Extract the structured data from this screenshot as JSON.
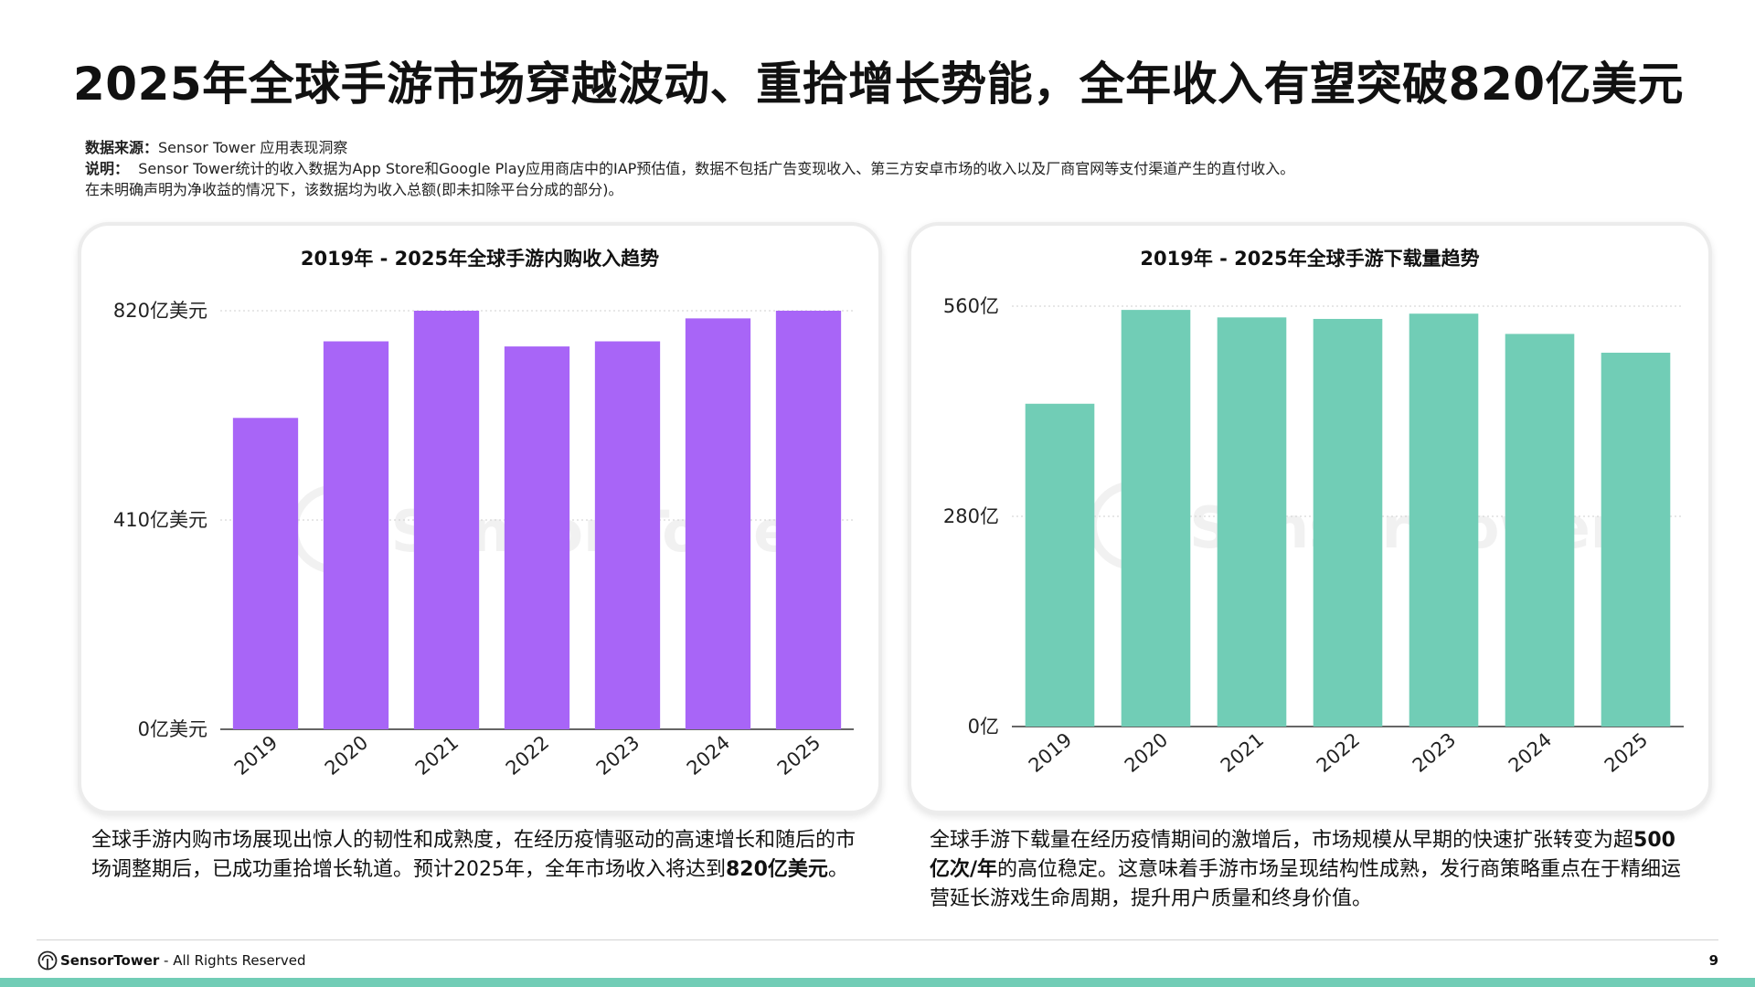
{
  "title": "2025年全球手游市场穿越波动、重拾增长势能，全年收入有望突破820亿美元",
  "meta": {
    "source_label": "数据来源：",
    "source_value": "Sensor Tower 应用表现洞察",
    "note_label": "说明：",
    "note_text": "Sensor Tower统计的收入数据为App Store和Google Play应用商店中的IAP预估值，数据不包括广告变现收入、第三方安卓市场的收入以及厂商官网等支付渠道产生的直付收入。",
    "note_text2": "在未明确声明为净收益的情况下，该数据均为收入总额(即未扣除平台分成的部分)。"
  },
  "watermark": "Sensor Tower",
  "chart_data": [
    {
      "type": "bar",
      "title": "2019年 - 2025年全球手游内购收入趋势",
      "categories": [
        "2019",
        "2020",
        "2021",
        "2022",
        "2023",
        "2024",
        "2025"
      ],
      "values": [
        610,
        760,
        820,
        750,
        760,
        805,
        820
      ],
      "ylim": [
        0,
        820
      ],
      "yticks": [
        0,
        410,
        820
      ],
      "ytick_labels": [
        "0亿美元",
        "410亿美元",
        "820亿美元"
      ],
      "xlabel": "",
      "ylabel": "",
      "grid": true,
      "color": "#a865f7"
    },
    {
      "type": "bar",
      "title": "2019年 - 2025年全球手游下载量趋势",
      "categories": [
        "2019",
        "2020",
        "2021",
        "2022",
        "2023",
        "2024",
        "2025"
      ],
      "values": [
        430,
        555,
        545,
        543,
        550,
        523,
        498
      ],
      "ylim": [
        0,
        560
      ],
      "yticks": [
        0,
        280,
        560
      ],
      "ytick_labels": [
        "0亿",
        "280亿",
        "560亿"
      ],
      "xlabel": "",
      "ylabel": "",
      "grid": true,
      "color": "#71cdb6"
    }
  ],
  "descriptions": {
    "left": {
      "part1": "全球手游内购市场展现出惊人的韧性和成熟度，在经历疫情驱动的高速增长和随后的市场调整期后，已成功重拾增长轨道。预计2025年，全年市场收入将达到",
      "bold": "820亿美元",
      "part2": "。"
    },
    "right": {
      "part1": "全球手游下载量在经历疫情期间的激增后，市场规模从早期的快速扩张转变为超",
      "bold": "500 亿次/年",
      "part2": "的高位稳定。这意味着手游市场呈现结构性成熟，发行商策略重点在于精细运营延长游戏生命周期，提升用户质量和终身价值。"
    }
  },
  "footer": {
    "brand": "SensorTower",
    "rights": " - All Rights Reserved",
    "page": "9"
  }
}
